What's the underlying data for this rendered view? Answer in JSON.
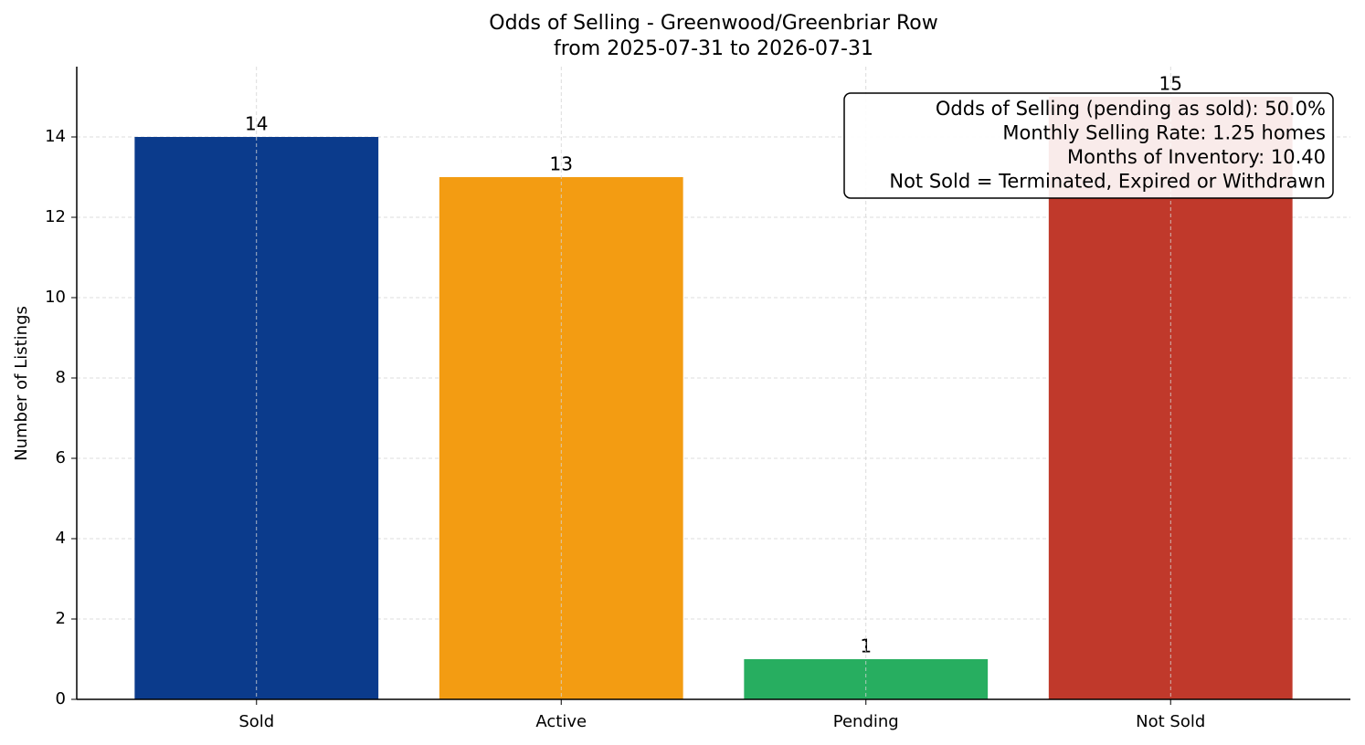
{
  "chart_data": {
    "type": "bar",
    "title": "Odds of Selling - Greenwood/Greenbriar Row",
    "subtitle": "from 2025-07-31 to 2026-07-31",
    "y_label": "Number of Listings",
    "categories": [
      "Sold",
      "Active",
      "Pending",
      "Not Sold"
    ],
    "values": [
      14,
      13,
      1,
      15
    ],
    "colors": [
      "#0b3b8c",
      "#f39c12",
      "#27ae60",
      "#c0392b"
    ],
    "ylim": [
      0,
      15.75
    ],
    "yticks": [
      0,
      2,
      4,
      6,
      8,
      10,
      12,
      14
    ],
    "grid": true,
    "annotation": [
      "Odds of Selling (pending as sold): 50.0%",
      "Monthly Selling Rate: 1.25 homes",
      "Months of Inventory: 10.40",
      "Not Sold = Terminated, Expired or Withdrawn"
    ]
  }
}
